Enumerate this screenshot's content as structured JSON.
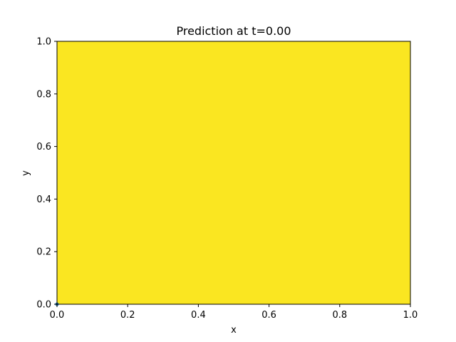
{
  "chart_data": {
    "type": "heatmap",
    "title": "Prediction at t=0.00",
    "xlabel": "x",
    "ylabel": "y",
    "xlim": [
      0.0,
      1.0
    ],
    "ylim": [
      0.0,
      1.0
    ],
    "xticks": [
      "0.0",
      "0.2",
      "0.4",
      "0.6",
      "0.8",
      "1.0"
    ],
    "yticks": [
      "0.0",
      "0.2",
      "0.4",
      "0.6",
      "0.8",
      "1.0"
    ],
    "grid": false,
    "legend": "none",
    "field": {
      "x_range": [
        0.0,
        1.0
      ],
      "y_range": [
        0.0,
        1.0
      ],
      "fill_color": "#fae621"
    },
    "colors": {
      "axes": "#000000",
      "background": "#ffffff",
      "marker": "#1f77b4"
    },
    "origin_marker": {
      "x": 0.0,
      "y": 0.0
    }
  }
}
